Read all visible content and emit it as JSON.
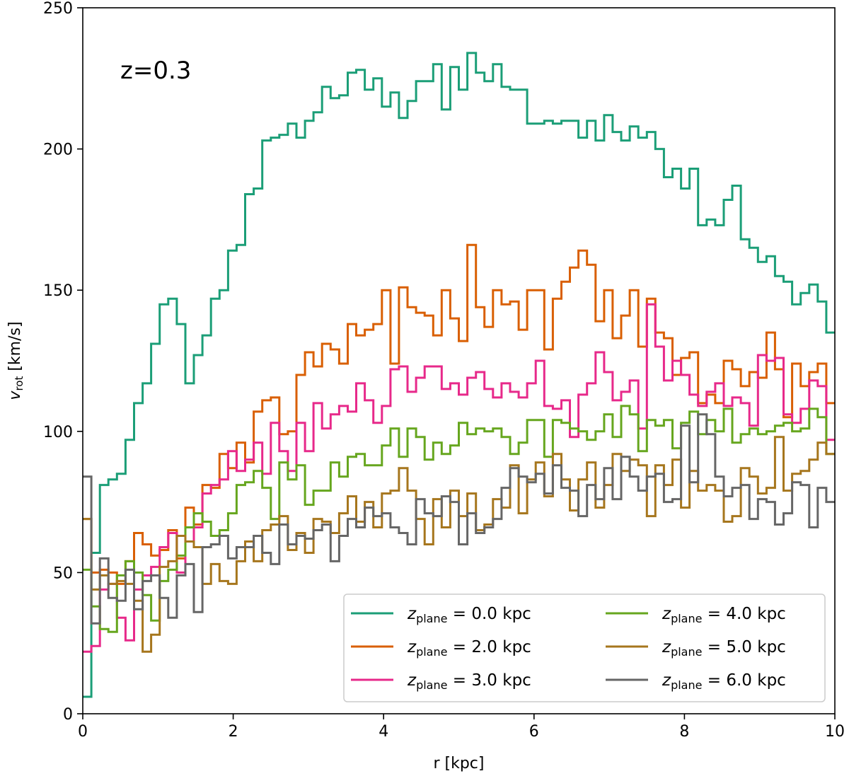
{
  "chart_data": {
    "type": "line",
    "step": true,
    "annotation": "z=0.3",
    "xlabel": "r [kpc]",
    "ylabel": {
      "main": "v",
      "sub": "rot",
      "rest": " [km/s]"
    },
    "xlim": [
      0,
      10
    ],
    "ylim": [
      0,
      250
    ],
    "xticks": [
      0,
      2,
      4,
      6,
      8,
      10
    ],
    "yticks": [
      0,
      50,
      100,
      150,
      200,
      250
    ],
    "legend_position": "lower-right",
    "series": [
      {
        "name": "z_plane = 0.0 kpc",
        "legend": {
          "sym": "z",
          "sub": "plane",
          "rest": " = 0.0 kpc"
        },
        "color": "#1b9e77",
        "y": [
          6,
          57,
          81,
          83,
          85,
          97,
          110,
          117,
          131,
          145,
          147,
          138,
          117,
          127,
          134,
          147,
          150,
          164,
          166,
          184,
          186,
          203,
          204,
          205,
          209,
          204,
          210,
          213,
          222,
          218,
          219,
          227,
          228,
          221,
          225,
          215,
          220,
          211,
          217,
          224,
          224,
          230,
          214,
          229,
          221,
          234,
          227,
          224,
          230,
          222,
          221,
          221,
          209,
          209,
          210,
          209,
          210,
          210,
          204,
          210,
          203,
          212,
          206,
          203,
          208,
          204,
          206,
          200,
          190,
          193,
          186,
          193,
          173,
          175,
          173,
          182,
          187,
          168,
          165,
          160,
          162,
          155,
          153,
          145,
          149,
          152,
          146,
          135
        ]
      },
      {
        "name": "z_plane = 2.0 kpc",
        "legend": {
          "sym": "z",
          "sub": "plane",
          "rest": " = 2.0 kpc"
        },
        "color": "#d95f02",
        "y": [
          69,
          50,
          51,
          50,
          46,
          54,
          64,
          60,
          56,
          58,
          65,
          55,
          73,
          67,
          81,
          80,
          92,
          87,
          96,
          89,
          107,
          111,
          112,
          99,
          100,
          120,
          128,
          123,
          131,
          129,
          124,
          138,
          134,
          136,
          138,
          150,
          124,
          151,
          144,
          142,
          141,
          134,
          150,
          140,
          132,
          166,
          144,
          137,
          150,
          145,
          146,
          136,
          150,
          150,
          129,
          147,
          153,
          158,
          164,
          159,
          139,
          150,
          133,
          141,
          150,
          130,
          147,
          135,
          133,
          120,
          126,
          128,
          110,
          113,
          110,
          125,
          122,
          116,
          121,
          119,
          135,
          122,
          105,
          124,
          116,
          121,
          124,
          110
        ]
      },
      {
        "name": "z_plane = 3.0 kpc",
        "legend": {
          "sym": "z",
          "sub": "plane",
          "rest": " = 3.0 kpc"
        },
        "color": "#e7298a",
        "y": [
          22,
          24,
          44,
          46,
          34,
          26,
          44,
          49,
          52,
          59,
          64,
          50,
          61,
          66,
          78,
          81,
          83,
          93,
          86,
          90,
          96,
          85,
          103,
          93,
          86,
          103,
          93,
          110,
          101,
          106,
          109,
          107,
          117,
          111,
          103,
          109,
          122,
          123,
          114,
          119,
          123,
          123,
          115,
          117,
          113,
          119,
          121,
          115,
          112,
          117,
          114,
          112,
          117,
          125,
          109,
          108,
          111,
          98,
          113,
          117,
          128,
          121,
          111,
          114,
          118,
          101,
          145,
          130,
          118,
          125,
          120,
          113,
          109,
          114,
          117,
          109,
          112,
          110,
          102,
          127,
          125,
          126,
          106,
          103,
          108,
          118,
          116,
          97
        ]
      },
      {
        "name": "z_plane = 4.0 kpc",
        "legend": {
          "sym": "z",
          "sub": "plane",
          "rest": " = 4.0 kpc"
        },
        "color": "#66a61e",
        "y": [
          51,
          38,
          30,
          29,
          49,
          54,
          50,
          42,
          33,
          47,
          51,
          56,
          66,
          71,
          68,
          63,
          65,
          71,
          81,
          82,
          86,
          80,
          69,
          89,
          83,
          88,
          74,
          79,
          79,
          89,
          84,
          91,
          92,
          88,
          88,
          95,
          101,
          91,
          101,
          98,
          90,
          96,
          92,
          95,
          103,
          99,
          101,
          100,
          101,
          98,
          92,
          96,
          104,
          104,
          91,
          104,
          103,
          101,
          100,
          97,
          100,
          106,
          98,
          109,
          106,
          93,
          104,
          102,
          104,
          94,
          103,
          107,
          99,
          104,
          100,
          108,
          96,
          99,
          101,
          99,
          100,
          102,
          103,
          100,
          101,
          108,
          105,
          92
        ]
      },
      {
        "name": "z_plane = 5.0 kpc",
        "legend": {
          "sym": "z",
          "sub": "plane",
          "rest": " = 5.0 kpc"
        },
        "color": "#a6761d",
        "y": [
          69,
          44,
          49,
          46,
          47,
          46,
          40,
          22,
          28,
          52,
          54,
          63,
          61,
          59,
          46,
          53,
          47,
          46,
          54,
          61,
          54,
          65,
          67,
          70,
          58,
          64,
          57,
          69,
          68,
          64,
          71,
          77,
          68,
          75,
          66,
          78,
          79,
          87,
          79,
          69,
          60,
          76,
          66,
          79,
          70,
          78,
          65,
          67,
          76,
          73,
          88,
          71,
          83,
          89,
          77,
          92,
          83,
          72,
          83,
          89,
          73,
          81,
          92,
          86,
          90,
          88,
          70,
          88,
          81,
          90,
          73,
          86,
          79,
          81,
          79,
          68,
          70,
          87,
          84,
          78,
          80,
          98,
          79,
          85,
          86,
          90,
          96,
          92
        ]
      },
      {
        "name": "z_plane = 6.0 kpc",
        "legend": {
          "sym": "z",
          "sub": "plane",
          "rest": " = 6.0 kpc"
        },
        "color": "#666666",
        "y": [
          84,
          32,
          55,
          41,
          40,
          51,
          37,
          47,
          49,
          41,
          34,
          49,
          53,
          36,
          59,
          60,
          63,
          55,
          59,
          59,
          63,
          57,
          53,
          67,
          60,
          63,
          62,
          65,
          67,
          54,
          63,
          69,
          66,
          73,
          70,
          71,
          66,
          64,
          60,
          76,
          71,
          70,
          77,
          75,
          60,
          71,
          64,
          66,
          69,
          80,
          87,
          84,
          82,
          85,
          78,
          88,
          80,
          79,
          70,
          81,
          76,
          87,
          76,
          91,
          84,
          79,
          84,
          85,
          75,
          76,
          102,
          82,
          106,
          99,
          84,
          77,
          80,
          81,
          69,
          76,
          75,
          67,
          71,
          82,
          81,
          66,
          80,
          75
        ]
      }
    ]
  }
}
